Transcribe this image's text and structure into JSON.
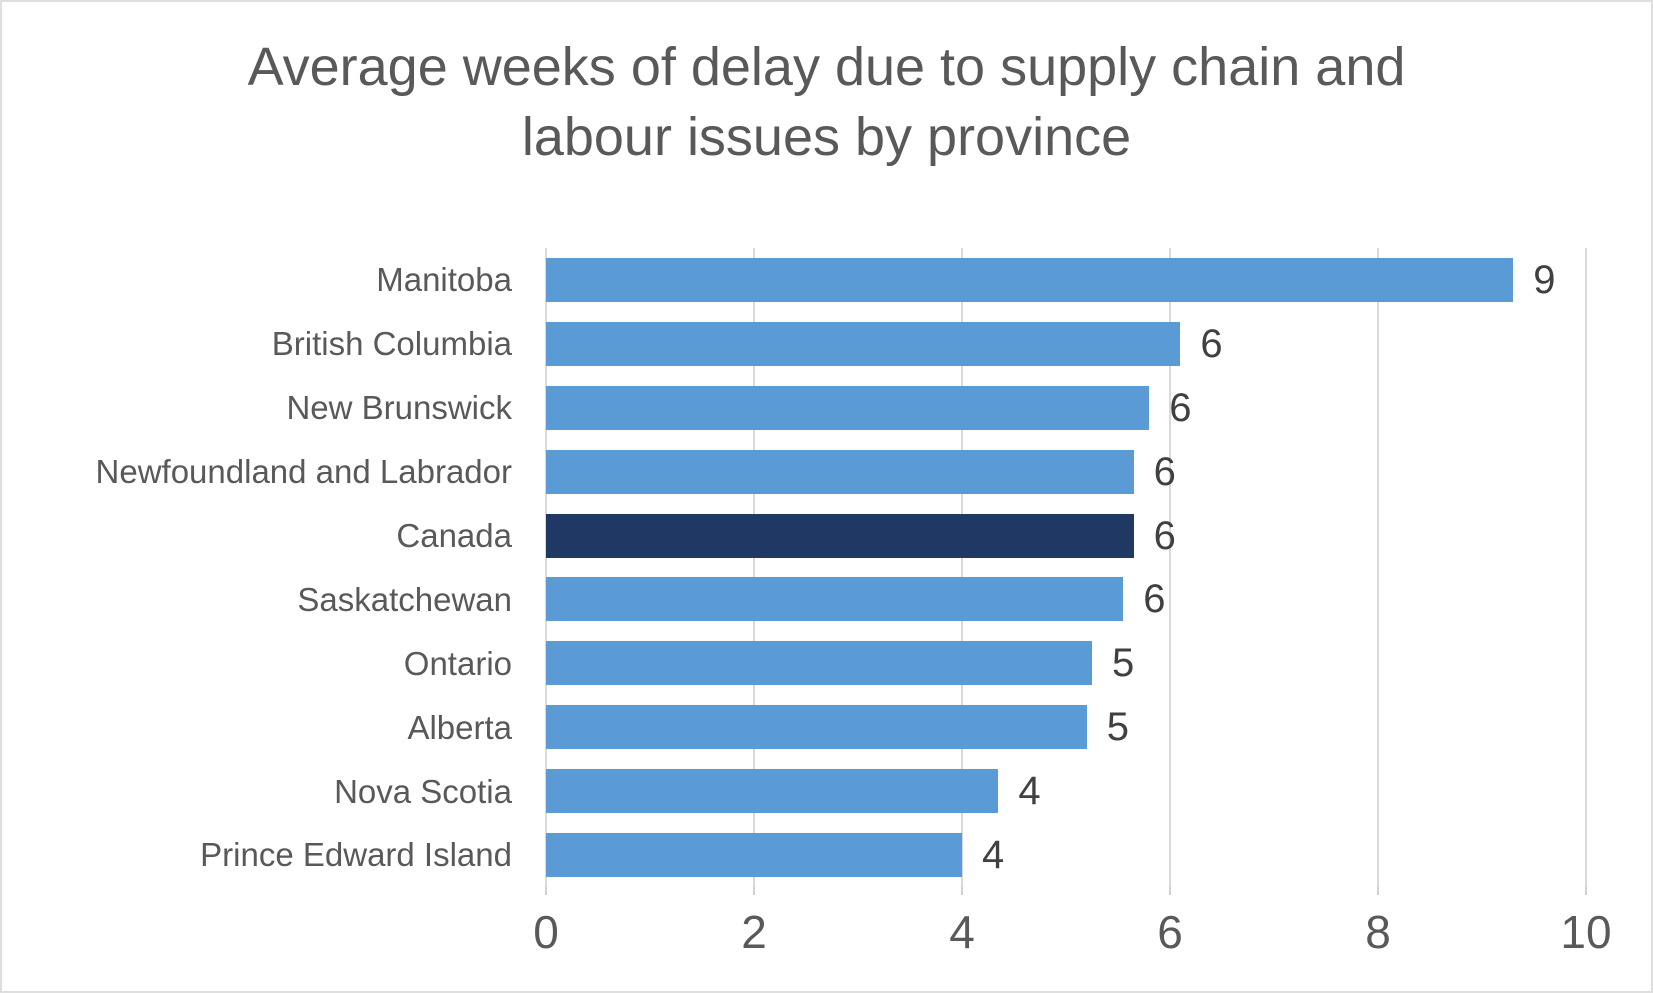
{
  "header": {
    "title_lines": [
      "Average weeks of delay due to supply chain and",
      "labour issues by province"
    ]
  },
  "colors": {
    "bar": "#5B9BD5",
    "highlight_bar": "#1F3864",
    "gridline": "#D9D9D9",
    "title_text": "#595959",
    "category_text": "#595959",
    "axis_text": "#595959",
    "value_text": "#404040",
    "border": "#DEDEDE"
  },
  "chart_data": {
    "type": "bar",
    "orientation": "horizontal",
    "title": "Average weeks of delay due to supply chain and labour issues by province",
    "categories": [
      "Manitoba",
      "British Columbia",
      "New Brunswick",
      "Newfoundland and Labrador",
      "Canada",
      "Saskatchewan",
      "Ontario",
      "Alberta",
      "Nova Scotia",
      "Prince Edward Island"
    ],
    "values": [
      9,
      6,
      6,
      6,
      6,
      6,
      5,
      5,
      4,
      4
    ],
    "data_labels": [
      "9",
      "6",
      "6",
      "6",
      "6",
      "6",
      "5",
      "5",
      "4",
      "4"
    ],
    "bar_extents": [
      9.3,
      6.1,
      5.8,
      5.65,
      5.65,
      5.55,
      5.25,
      5.2,
      4.35,
      4.0
    ],
    "highlighted_category": "Canada",
    "xlabel": "",
    "ylabel": "",
    "xlim": [
      0,
      10
    ],
    "x_ticks": [
      0,
      2,
      4,
      6,
      8,
      10
    ],
    "grid": true,
    "legend": false
  }
}
